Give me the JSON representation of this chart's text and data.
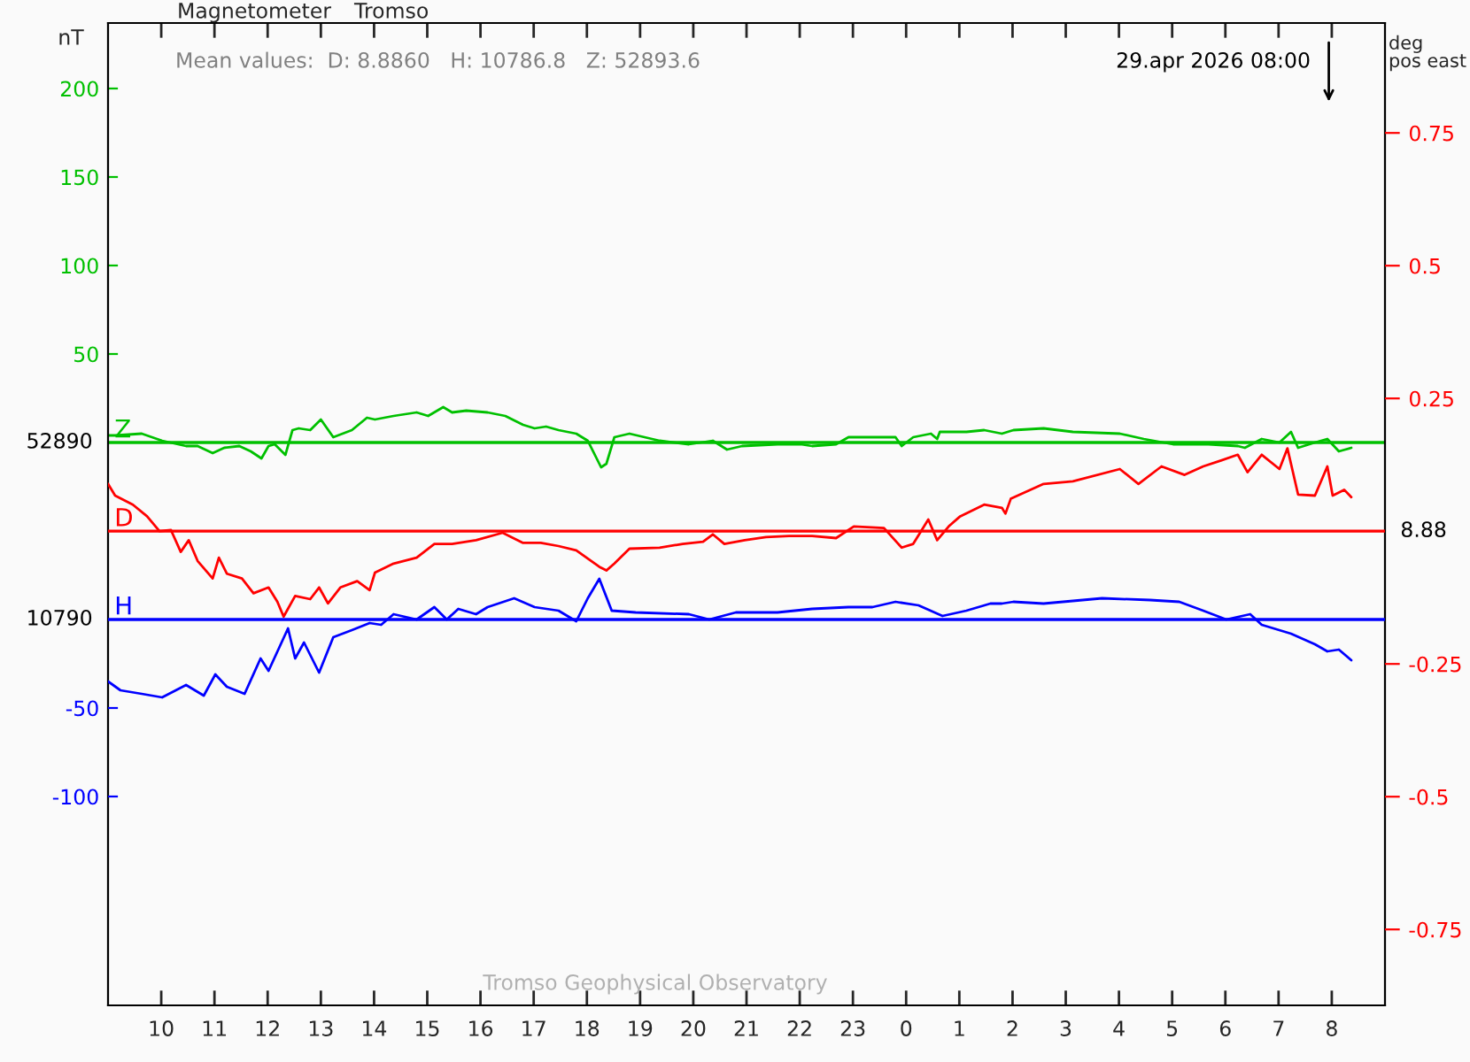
{
  "chart_data": {
    "type": "line",
    "title": "Magnetometer",
    "subtitle": "Tromso",
    "ylabel": "nT",
    "y2label": "deg\npos east",
    "annotations": [
      "Mean values:  D: 8.8860   H: 10786.8   Z: 52893.6",
      "29.apr 2026 08:00",
      "Tromso Geophysical Observatory",
      "52890",
      "8.88",
      "10790"
    ],
    "xlim": [
      "2026-04-28T09:00",
      "2026-04-29T09:00"
    ],
    "xticks": [
      {
        "value": "2026-04-28T10:00",
        "label": "10"
      },
      {
        "value": "2026-04-28T11:00",
        "label": "11"
      },
      {
        "value": "2026-04-28T12:00",
        "label": "12"
      },
      {
        "value": "2026-04-28T13:00",
        "label": "13"
      },
      {
        "value": "2026-04-28T14:00",
        "label": "14"
      },
      {
        "value": "2026-04-28T15:00",
        "label": "15"
      },
      {
        "value": "2026-04-28T16:00",
        "label": "16"
      },
      {
        "value": "2026-04-28T17:00",
        "label": "17"
      },
      {
        "value": "2026-04-28T18:00",
        "label": "18"
      },
      {
        "value": "2026-04-28T19:00",
        "label": "19"
      },
      {
        "value": "2026-04-28T20:00",
        "label": "20"
      },
      {
        "value": "2026-04-28T21:00",
        "label": "21"
      },
      {
        "value": "2026-04-28T22:00",
        "label": "22"
      },
      {
        "value": "2026-04-28T23:00",
        "label": "23"
      },
      {
        "value": "2026-04-29T00:00",
        "label": "0"
      },
      {
        "value": "2026-04-29T01:00",
        "label": "1"
      },
      {
        "value": "2026-04-29T02:00",
        "label": "2"
      },
      {
        "value": "2026-04-29T03:00",
        "label": "3"
      },
      {
        "value": "2026-04-29T04:00",
        "label": "4"
      },
      {
        "value": "2026-04-29T05:00",
        "label": "5"
      },
      {
        "value": "2026-04-29T06:00",
        "label": "6"
      },
      {
        "value": "2026-04-29T07:00",
        "label": "7"
      },
      {
        "value": "2026-04-29T08:00",
        "label": "8"
      }
    ],
    "ylim": [
      -318,
      237
    ],
    "yticks": [
      200,
      150,
      100,
      50
    ],
    "y2lim": [
      -0.893,
      0.957
    ],
    "y2ticks": [
      0.75,
      0.5,
      0.25,
      -0.25,
      -0.5,
      -0.75
    ],
    "y3lim": [
      -218,
      337
    ],
    "y3ticks": [
      -50,
      -100
    ],
    "ref_lines": [
      {
        "axis": "y",
        "value": 0,
        "label": "Z",
        "color": "#00c000"
      },
      {
        "axis": "y2",
        "value": 0,
        "label": "D",
        "color": "#ff0000"
      },
      {
        "axis": "y3",
        "value": 0,
        "label": "H",
        "color": "#0000ff"
      }
    ],
    "legend": false,
    "grid": false,
    "marker": "none",
    "line_style": "solid",
    "series": [
      {
        "axis": "y",
        "color": "#00c000",
        "x": [
          "2026-04-28T09:00",
          "2026-04-28T09:08",
          "2026-04-28T09:38",
          "2026-04-28T10:01",
          "2026-04-28T10:28",
          "2026-04-28T10:41",
          "2026-04-28T10:58",
          "2026-04-28T11:11",
          "2026-04-28T11:28",
          "2026-04-28T11:41",
          "2026-04-28T11:53",
          "2026-04-28T12:01",
          "2026-04-28T12:08",
          "2026-04-28T12:20",
          "2026-04-28T12:28",
          "2026-04-28T12:35",
          "2026-04-28T12:48",
          "2026-04-28T13:00",
          "2026-04-28T13:14",
          "2026-04-28T13:35",
          "2026-04-28T13:52",
          "2026-04-28T14:01",
          "2026-04-28T14:22",
          "2026-04-28T14:35",
          "2026-04-28T14:48",
          "2026-04-28T15:01",
          "2026-04-28T15:18",
          "2026-04-28T15:28",
          "2026-04-28T15:44",
          "2026-04-28T16:08",
          "2026-04-28T16:28",
          "2026-04-28T16:48",
          "2026-04-28T17:01",
          "2026-04-28T17:14",
          "2026-04-28T17:28",
          "2026-04-28T17:48",
          "2026-04-28T18:01",
          "2026-04-28T18:11",
          "2026-04-28T18:16",
          "2026-04-28T18:22",
          "2026-04-28T18:31",
          "2026-04-28T18:48",
          "2026-04-28T19:05",
          "2026-04-28T19:22",
          "2026-04-28T19:55",
          "2026-04-28T20:22",
          "2026-04-28T20:38",
          "2026-04-28T20:55",
          "2026-04-28T21:35",
          "2026-04-28T22:01",
          "2026-04-28T22:14",
          "2026-04-28T22:41",
          "2026-04-28T22:55",
          "2026-04-28T23:22",
          "2026-04-28T23:48",
          "2026-04-28T23:55",
          "2026-04-29T00:08",
          "2026-04-29T00:28",
          "2026-04-29T00:35",
          "2026-04-29T00:38",
          "2026-04-29T01:08",
          "2026-04-29T01:28",
          "2026-04-29T01:48",
          "2026-04-29T02:01",
          "2026-04-29T02:35",
          "2026-04-29T03:08",
          "2026-04-29T04:01",
          "2026-04-29T04:28",
          "2026-04-29T05:01",
          "2026-04-29T05:41",
          "2026-04-29T06:14",
          "2026-04-29T06:22",
          "2026-04-29T06:41",
          "2026-04-29T07:01",
          "2026-04-29T07:14",
          "2026-04-29T07:22",
          "2026-04-29T07:41",
          "2026-04-29T07:55",
          "2026-04-29T08:08",
          "2026-04-29T08:22"
        ],
        "values": [
          4,
          4,
          5,
          1,
          -2,
          -2,
          -6,
          -3,
          -2,
          -5,
          -9,
          -2,
          -1,
          -7,
          7,
          8,
          7,
          13,
          3,
          7,
          14,
          13,
          15,
          16,
          17,
          15,
          20,
          17,
          18,
          17,
          15,
          10,
          8,
          9,
          7,
          5,
          1,
          -9,
          -14,
          -12,
          3,
          5,
          3,
          1,
          -1,
          1,
          -4,
          -2,
          -1,
          -1,
          -2,
          -1,
          3,
          3,
          3,
          -2,
          3,
          5,
          2,
          6,
          6,
          7,
          5,
          7,
          8,
          6,
          5,
          2,
          -1,
          -1,
          -2,
          -3,
          2,
          0,
          6,
          -3,
          0,
          2,
          -5,
          -3
        ]
      },
      {
        "axis": "y2",
        "color": "#ff0000",
        "x": [
          "2026-04-28T09:00",
          "2026-04-28T09:08",
          "2026-04-28T09:28",
          "2026-04-28T09:44",
          "2026-04-28T09:58",
          "2026-04-28T10:11",
          "2026-04-28T10:22",
          "2026-04-28T10:31",
          "2026-04-28T10:41",
          "2026-04-28T10:58",
          "2026-04-28T11:05",
          "2026-04-28T11:14",
          "2026-04-28T11:31",
          "2026-04-28T11:44",
          "2026-04-28T12:01",
          "2026-04-28T12:11",
          "2026-04-28T12:18",
          "2026-04-28T12:31",
          "2026-04-28T12:48",
          "2026-04-28T12:58",
          "2026-04-28T13:08",
          "2026-04-28T13:22",
          "2026-04-28T13:41",
          "2026-04-28T13:55",
          "2026-04-28T14:01",
          "2026-04-28T14:22",
          "2026-04-28T14:48",
          "2026-04-28T15:08",
          "2026-04-28T15:28",
          "2026-04-28T15:55",
          "2026-04-28T16:25",
          "2026-04-28T16:48",
          "2026-04-28T17:08",
          "2026-04-28T17:28",
          "2026-04-28T17:48",
          "2026-04-28T18:14",
          "2026-04-28T18:22",
          "2026-04-28T18:31",
          "2026-04-28T18:48",
          "2026-04-28T19:22",
          "2026-04-28T19:48",
          "2026-04-28T20:11",
          "2026-04-28T20:22",
          "2026-04-28T20:35",
          "2026-04-28T20:58",
          "2026-04-28T21:22",
          "2026-04-28T21:48",
          "2026-04-28T22:14",
          "2026-04-28T22:41",
          "2026-04-28T23:01",
          "2026-04-28T23:35",
          "2026-04-28T23:55",
          "2026-04-29T00:08",
          "2026-04-29T00:25",
          "2026-04-29T00:35",
          "2026-04-29T00:48",
          "2026-04-29T01:01",
          "2026-04-29T01:28",
          "2026-04-29T01:48",
          "2026-04-29T01:52",
          "2026-04-29T01:58",
          "2026-04-29T02:35",
          "2026-04-29T03:08",
          "2026-04-29T04:01",
          "2026-04-29T04:22",
          "2026-04-29T04:48",
          "2026-04-29T05:14",
          "2026-04-29T05:35",
          "2026-04-29T05:55",
          "2026-04-29T06:14",
          "2026-04-29T06:25",
          "2026-04-29T06:41",
          "2026-04-29T07:01",
          "2026-04-29T07:10",
          "2026-04-29T07:22",
          "2026-04-29T07:41",
          "2026-04-29T07:55",
          "2026-04-29T08:01",
          "2026-04-29T08:14",
          "2026-04-29T08:22"
        ],
        "values": [
          0.089,
          0.067,
          0.05,
          0.028,
          0,
          0.002,
          -0.039,
          -0.017,
          -0.056,
          -0.089,
          -0.05,
          -0.08,
          -0.089,
          -0.117,
          -0.106,
          -0.133,
          -0.161,
          -0.122,
          -0.128,
          -0.106,
          -0.136,
          -0.106,
          -0.094,
          -0.111,
          -0.078,
          -0.061,
          -0.05,
          -0.024,
          -0.024,
          -0.017,
          -0.003,
          -0.022,
          -0.022,
          -0.028,
          -0.036,
          -0.067,
          -0.074,
          -0.061,
          -0.033,
          -0.031,
          -0.024,
          -0.02,
          -0.006,
          -0.024,
          -0.017,
          -0.011,
          -0.009,
          -0.009,
          -0.013,
          0.009,
          0.006,
          -0.031,
          -0.024,
          0.022,
          -0.017,
          0.009,
          0.028,
          0.05,
          0.044,
          0.033,
          0.061,
          0.089,
          0.094,
          0.117,
          0.089,
          0.122,
          0.106,
          0.122,
          0.133,
          0.144,
          0.111,
          0.144,
          0.117,
          0.156,
          0.069,
          0.067,
          0.122,
          0.067,
          0.078,
          0.064
        ]
      },
      {
        "axis": "y3",
        "color": "#0000ff",
        "x": [
          "2026-04-28T09:00",
          "2026-04-28T09:14",
          "2026-04-28T09:38",
          "2026-04-28T10:01",
          "2026-04-28T10:28",
          "2026-04-28T10:48",
          "2026-04-28T11:01",
          "2026-04-28T11:14",
          "2026-04-28T11:34",
          "2026-04-28T11:52",
          "2026-04-28T12:01",
          "2026-04-28T12:23",
          "2026-04-28T12:31",
          "2026-04-28T12:41",
          "2026-04-28T12:58",
          "2026-04-28T13:14",
          "2026-04-28T13:35",
          "2026-04-28T13:55",
          "2026-04-28T14:08",
          "2026-04-28T14:22",
          "2026-04-28T14:48",
          "2026-04-28T15:08",
          "2026-04-28T15:22",
          "2026-04-28T15:35",
          "2026-04-28T15:55",
          "2026-04-28T16:08",
          "2026-04-28T16:38",
          "2026-04-28T17:01",
          "2026-04-28T17:28",
          "2026-04-28T17:48",
          "2026-04-28T18:01",
          "2026-04-28T18:14",
          "2026-04-28T18:28",
          "2026-04-28T18:55",
          "2026-04-28T19:55",
          "2026-04-28T20:18",
          "2026-04-28T20:48",
          "2026-04-28T21:35",
          "2026-04-28T22:14",
          "2026-04-28T22:55",
          "2026-04-28T23:22",
          "2026-04-28T23:48",
          "2026-04-29T00:14",
          "2026-04-29T00:41",
          "2026-04-29T01:08",
          "2026-04-29T01:35",
          "2026-04-29T01:48",
          "2026-04-29T02:01",
          "2026-04-29T02:35",
          "2026-04-29T03:41",
          "2026-04-29T04:35",
          "2026-04-29T05:08",
          "2026-04-29T05:35",
          "2026-04-29T06:01",
          "2026-04-29T06:28",
          "2026-04-29T06:41",
          "2026-04-29T07:14",
          "2026-04-29T07:41",
          "2026-04-29T07:55",
          "2026-04-29T08:08",
          "2026-04-29T08:22"
        ],
        "values": [
          -35,
          -40,
          -42,
          -44,
          -37,
          -43,
          -31,
          -38,
          -42,
          -22,
          -29,
          -5,
          -22,
          -13,
          -30,
          -10,
          -6,
          -2,
          -3,
          3,
          0,
          7,
          0,
          6,
          3,
          7,
          12,
          7,
          5,
          -1,
          12,
          23,
          5,
          4,
          3,
          0,
          4,
          4,
          6,
          7,
          7,
          10,
          8,
          2,
          5,
          9,
          9,
          10,
          9,
          12,
          11,
          10,
          5,
          0,
          3,
          -3,
          -8,
          -14,
          -18,
          -17,
          -23
        ]
      }
    ]
  }
}
